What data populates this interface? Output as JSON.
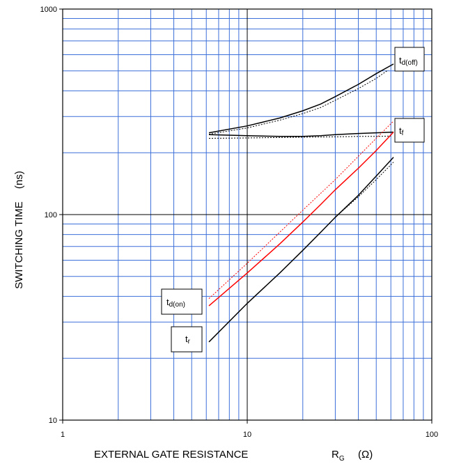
{
  "chart_data": {
    "type": "line",
    "xscale": "log",
    "yscale": "log",
    "xlim": [
      1,
      100
    ],
    "ylim": [
      10,
      1000
    ],
    "grid": true,
    "x_tick_labels": [
      "1",
      "10",
      "100"
    ],
    "y_tick_labels": [
      "10",
      "100",
      "1000"
    ],
    "xlabel_main": "EXTERNAL GATE RESISTANCE",
    "xlabel_symbol": "R",
    "xlabel_symbol_sub": "G",
    "xlabel_unit": "(Ω)",
    "ylabel": "SWITCHING TIME",
    "ylabel_unit": "(ns)",
    "colors": {
      "grid_minor": "#3b6fd9",
      "grid_major": "#000000",
      "red": "#ff0000",
      "black": "#000000"
    },
    "series": [
      {
        "key": "td_off",
        "label_main": "t",
        "label_sub": "d(off)",
        "color": "#000000",
        "x": [
          6.2,
          10,
          15,
          20,
          25,
          30,
          40,
          50,
          62
        ],
        "y": [
          250,
          270,
          295,
          320,
          345,
          375,
          430,
          485,
          540
        ],
        "dotted_x": [
          6.2,
          10,
          15,
          20,
          25,
          30,
          40,
          50,
          58
        ],
        "dotted_y": [
          246,
          264,
          288,
          310,
          332,
          360,
          410,
          460,
          505
        ]
      },
      {
        "key": "tf",
        "label_main": "t",
        "label_sub": "f",
        "color": "#000000",
        "x": [
          6.2,
          10,
          15,
          20,
          25,
          30,
          40,
          50,
          62
        ],
        "y": [
          245,
          242,
          240,
          240,
          242,
          245,
          248,
          250,
          252
        ],
        "dotted_x": [
          6.2,
          10,
          20,
          30,
          40,
          50,
          60
        ],
        "dotted_y": [
          235,
          236,
          238,
          239,
          240,
          240,
          241
        ]
      },
      {
        "key": "td_on",
        "label_main": "t",
        "label_sub": "d(on)",
        "color": "#ff0000",
        "x": [
          6.2,
          10,
          15,
          20,
          25,
          30,
          40,
          50,
          62
        ],
        "y": [
          36,
          52,
          72,
          92,
          112,
          132,
          168,
          205,
          252
        ],
        "dotted_x": [
          6.2,
          10,
          20,
          30,
          40,
          50,
          62
        ],
        "dotted_y": [
          39,
          58,
          105,
          148,
          192,
          235,
          285
        ]
      },
      {
        "key": "tr",
        "label_main": "t",
        "label_sub": "r",
        "color": "#000000",
        "x": [
          6.2,
          10,
          15,
          20,
          25,
          30,
          40,
          50,
          62
        ],
        "y": [
          24,
          37,
          52,
          67,
          82,
          97,
          124,
          154,
          190
        ],
        "dotted_x": [
          20,
          30,
          40,
          50,
          62
        ],
        "dotted_y": [
          67,
          97,
          122,
          148,
          180
        ]
      }
    ]
  }
}
